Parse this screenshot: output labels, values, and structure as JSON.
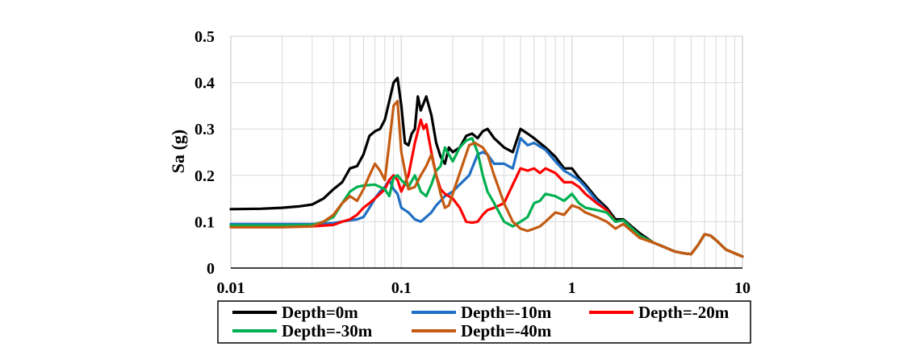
{
  "chart_data": {
    "type": "line",
    "title": "",
    "xlabel": "",
    "ylabel": "Sa (g)",
    "xscale": "log",
    "xlim": [
      0.01,
      10
    ],
    "ylim": [
      0,
      0.5
    ],
    "x_ticks": [
      "0.01",
      "0.1",
      "1",
      "10"
    ],
    "y_ticks": [
      "0",
      "0.1",
      "0.2",
      "0.3",
      "0.4",
      "0.5"
    ],
    "grid": true,
    "legend_position": "bottom",
    "series": [
      {
        "name": "Depth=0m",
        "color": "#000000",
        "points": [
          [
            0.01,
            0.127
          ],
          [
            0.015,
            0.128
          ],
          [
            0.02,
            0.13
          ],
          [
            0.025,
            0.133
          ],
          [
            0.03,
            0.137
          ],
          [
            0.035,
            0.15
          ],
          [
            0.04,
            0.17
          ],
          [
            0.045,
            0.185
          ],
          [
            0.05,
            0.215
          ],
          [
            0.055,
            0.22
          ],
          [
            0.06,
            0.245
          ],
          [
            0.065,
            0.285
          ],
          [
            0.07,
            0.295
          ],
          [
            0.075,
            0.3
          ],
          [
            0.08,
            0.32
          ],
          [
            0.085,
            0.36
          ],
          [
            0.09,
            0.4
          ],
          [
            0.095,
            0.41
          ],
          [
            0.1,
            0.35
          ],
          [
            0.105,
            0.27
          ],
          [
            0.11,
            0.265
          ],
          [
            0.115,
            0.29
          ],
          [
            0.12,
            0.3
          ],
          [
            0.125,
            0.37
          ],
          [
            0.13,
            0.34
          ],
          [
            0.14,
            0.37
          ],
          [
            0.15,
            0.33
          ],
          [
            0.16,
            0.27
          ],
          [
            0.17,
            0.24
          ],
          [
            0.18,
            0.225
          ],
          [
            0.19,
            0.26
          ],
          [
            0.2,
            0.25
          ],
          [
            0.22,
            0.26
          ],
          [
            0.24,
            0.285
          ],
          [
            0.26,
            0.29
          ],
          [
            0.28,
            0.28
          ],
          [
            0.3,
            0.295
          ],
          [
            0.32,
            0.3
          ],
          [
            0.35,
            0.28
          ],
          [
            0.4,
            0.26
          ],
          [
            0.45,
            0.25
          ],
          [
            0.5,
            0.3
          ],
          [
            0.55,
            0.29
          ],
          [
            0.6,
            0.28
          ],
          [
            0.7,
            0.26
          ],
          [
            0.8,
            0.24
          ],
          [
            0.9,
            0.215
          ],
          [
            1.0,
            0.215
          ],
          [
            1.1,
            0.195
          ],
          [
            1.2,
            0.18
          ],
          [
            1.4,
            0.15
          ],
          [
            1.6,
            0.13
          ],
          [
            1.8,
            0.105
          ],
          [
            2.0,
            0.105
          ],
          [
            2.5,
            0.075
          ],
          [
            3.0,
            0.055
          ],
          [
            3.5,
            0.045
          ],
          [
            4.0,
            0.036
          ],
          [
            4.5,
            0.032
          ],
          [
            5.0,
            0.03
          ],
          [
            5.5,
            0.05
          ],
          [
            6.0,
            0.073
          ],
          [
            6.5,
            0.07
          ],
          [
            7.0,
            0.06
          ],
          [
            8.0,
            0.04
          ],
          [
            9.0,
            0.032
          ],
          [
            10.0,
            0.025
          ]
        ]
      },
      {
        "name": "Depth=-10m",
        "color": "#1f6fc4",
        "points": [
          [
            0.01,
            0.095
          ],
          [
            0.02,
            0.095
          ],
          [
            0.03,
            0.095
          ],
          [
            0.04,
            0.097
          ],
          [
            0.05,
            0.103
          ],
          [
            0.055,
            0.105
          ],
          [
            0.06,
            0.11
          ],
          [
            0.065,
            0.13
          ],
          [
            0.07,
            0.15
          ],
          [
            0.075,
            0.165
          ],
          [
            0.08,
            0.175
          ],
          [
            0.085,
            0.19
          ],
          [
            0.09,
            0.17
          ],
          [
            0.095,
            0.16
          ],
          [
            0.1,
            0.13
          ],
          [
            0.11,
            0.12
          ],
          [
            0.12,
            0.105
          ],
          [
            0.13,
            0.1
          ],
          [
            0.14,
            0.11
          ],
          [
            0.15,
            0.12
          ],
          [
            0.16,
            0.135
          ],
          [
            0.18,
            0.155
          ],
          [
            0.2,
            0.165
          ],
          [
            0.22,
            0.18
          ],
          [
            0.25,
            0.2
          ],
          [
            0.28,
            0.245
          ],
          [
            0.3,
            0.25
          ],
          [
            0.32,
            0.245
          ],
          [
            0.35,
            0.225
          ],
          [
            0.4,
            0.225
          ],
          [
            0.45,
            0.215
          ],
          [
            0.5,
            0.28
          ],
          [
            0.55,
            0.265
          ],
          [
            0.6,
            0.27
          ],
          [
            0.7,
            0.255
          ],
          [
            0.8,
            0.23
          ],
          [
            0.9,
            0.21
          ],
          [
            1.0,
            0.2
          ],
          [
            1.1,
            0.19
          ],
          [
            1.2,
            0.175
          ],
          [
            1.4,
            0.145
          ],
          [
            1.6,
            0.125
          ],
          [
            1.8,
            0.1
          ],
          [
            2.0,
            0.103
          ],
          [
            2.5,
            0.07
          ],
          [
            3.0,
            0.055
          ],
          [
            3.5,
            0.045
          ],
          [
            4.0,
            0.036
          ],
          [
            4.5,
            0.032
          ],
          [
            5.0,
            0.03
          ],
          [
            5.5,
            0.05
          ],
          [
            6.0,
            0.073
          ],
          [
            6.5,
            0.07
          ],
          [
            7.0,
            0.06
          ],
          [
            8.0,
            0.04
          ],
          [
            9.0,
            0.032
          ],
          [
            10.0,
            0.025
          ]
        ]
      },
      {
        "name": "Depth=-20m",
        "color": "#ff0000",
        "points": [
          [
            0.01,
            0.09
          ],
          [
            0.02,
            0.09
          ],
          [
            0.03,
            0.09
          ],
          [
            0.04,
            0.093
          ],
          [
            0.045,
            0.1
          ],
          [
            0.05,
            0.105
          ],
          [
            0.055,
            0.115
          ],
          [
            0.06,
            0.13
          ],
          [
            0.065,
            0.14
          ],
          [
            0.07,
            0.15
          ],
          [
            0.075,
            0.16
          ],
          [
            0.08,
            0.17
          ],
          [
            0.085,
            0.19
          ],
          [
            0.09,
            0.2
          ],
          [
            0.095,
            0.19
          ],
          [
            0.1,
            0.165
          ],
          [
            0.11,
            0.2
          ],
          [
            0.12,
            0.27
          ],
          [
            0.13,
            0.32
          ],
          [
            0.135,
            0.3
          ],
          [
            0.14,
            0.31
          ],
          [
            0.15,
            0.25
          ],
          [
            0.16,
            0.2
          ],
          [
            0.17,
            0.17
          ],
          [
            0.18,
            0.16
          ],
          [
            0.2,
            0.15
          ],
          [
            0.22,
            0.13
          ],
          [
            0.24,
            0.1
          ],
          [
            0.26,
            0.098
          ],
          [
            0.28,
            0.1
          ],
          [
            0.3,
            0.115
          ],
          [
            0.32,
            0.125
          ],
          [
            0.35,
            0.13
          ],
          [
            0.4,
            0.14
          ],
          [
            0.45,
            0.18
          ],
          [
            0.5,
            0.215
          ],
          [
            0.55,
            0.21
          ],
          [
            0.6,
            0.215
          ],
          [
            0.65,
            0.205
          ],
          [
            0.7,
            0.215
          ],
          [
            0.8,
            0.205
          ],
          [
            0.9,
            0.185
          ],
          [
            1.0,
            0.185
          ],
          [
            1.1,
            0.175
          ],
          [
            1.2,
            0.16
          ],
          [
            1.4,
            0.14
          ],
          [
            1.6,
            0.125
          ],
          [
            1.8,
            0.1
          ],
          [
            2.0,
            0.103
          ],
          [
            2.5,
            0.07
          ],
          [
            3.0,
            0.055
          ],
          [
            3.5,
            0.045
          ],
          [
            4.0,
            0.036
          ],
          [
            4.5,
            0.032
          ],
          [
            5.0,
            0.03
          ],
          [
            5.5,
            0.05
          ],
          [
            6.0,
            0.073
          ],
          [
            6.5,
            0.07
          ],
          [
            7.0,
            0.06
          ],
          [
            8.0,
            0.04
          ],
          [
            9.0,
            0.032
          ],
          [
            10.0,
            0.025
          ]
        ]
      },
      {
        "name": "Depth=-30m",
        "color": "#00b050",
        "points": [
          [
            0.01,
            0.092
          ],
          [
            0.02,
            0.092
          ],
          [
            0.03,
            0.093
          ],
          [
            0.035,
            0.1
          ],
          [
            0.04,
            0.11
          ],
          [
            0.045,
            0.14
          ],
          [
            0.05,
            0.165
          ],
          [
            0.055,
            0.175
          ],
          [
            0.06,
            0.178
          ],
          [
            0.07,
            0.18
          ],
          [
            0.08,
            0.17
          ],
          [
            0.085,
            0.155
          ],
          [
            0.09,
            0.195
          ],
          [
            0.095,
            0.2
          ],
          [
            0.1,
            0.19
          ],
          [
            0.11,
            0.175
          ],
          [
            0.12,
            0.2
          ],
          [
            0.13,
            0.165
          ],
          [
            0.14,
            0.155
          ],
          [
            0.15,
            0.18
          ],
          [
            0.16,
            0.21
          ],
          [
            0.17,
            0.22
          ],
          [
            0.18,
            0.26
          ],
          [
            0.19,
            0.245
          ],
          [
            0.2,
            0.23
          ],
          [
            0.22,
            0.26
          ],
          [
            0.24,
            0.275
          ],
          [
            0.26,
            0.28
          ],
          [
            0.28,
            0.25
          ],
          [
            0.3,
            0.2
          ],
          [
            0.32,
            0.165
          ],
          [
            0.35,
            0.14
          ],
          [
            0.4,
            0.1
          ],
          [
            0.45,
            0.09
          ],
          [
            0.5,
            0.1
          ],
          [
            0.55,
            0.11
          ],
          [
            0.6,
            0.14
          ],
          [
            0.65,
            0.145
          ],
          [
            0.7,
            0.16
          ],
          [
            0.8,
            0.155
          ],
          [
            0.9,
            0.145
          ],
          [
            1.0,
            0.16
          ],
          [
            1.1,
            0.14
          ],
          [
            1.2,
            0.13
          ],
          [
            1.4,
            0.125
          ],
          [
            1.6,
            0.12
          ],
          [
            1.8,
            0.1
          ],
          [
            2.0,
            0.103
          ],
          [
            2.5,
            0.07
          ],
          [
            3.0,
            0.055
          ],
          [
            3.5,
            0.045
          ],
          [
            4.0,
            0.036
          ],
          [
            4.5,
            0.032
          ],
          [
            5.0,
            0.03
          ],
          [
            5.5,
            0.05
          ],
          [
            6.0,
            0.073
          ],
          [
            6.5,
            0.07
          ],
          [
            7.0,
            0.06
          ],
          [
            8.0,
            0.04
          ],
          [
            9.0,
            0.032
          ],
          [
            10.0,
            0.025
          ]
        ]
      },
      {
        "name": "Depth=-40m",
        "color": "#c55a11",
        "points": [
          [
            0.01,
            0.088
          ],
          [
            0.02,
            0.088
          ],
          [
            0.03,
            0.09
          ],
          [
            0.035,
            0.1
          ],
          [
            0.04,
            0.115
          ],
          [
            0.045,
            0.14
          ],
          [
            0.05,
            0.155
          ],
          [
            0.055,
            0.145
          ],
          [
            0.06,
            0.17
          ],
          [
            0.065,
            0.2
          ],
          [
            0.07,
            0.225
          ],
          [
            0.075,
            0.21
          ],
          [
            0.08,
            0.19
          ],
          [
            0.085,
            0.27
          ],
          [
            0.09,
            0.35
          ],
          [
            0.095,
            0.36
          ],
          [
            0.1,
            0.25
          ],
          [
            0.11,
            0.17
          ],
          [
            0.12,
            0.175
          ],
          [
            0.13,
            0.2
          ],
          [
            0.14,
            0.22
          ],
          [
            0.15,
            0.245
          ],
          [
            0.16,
            0.2
          ],
          [
            0.17,
            0.16
          ],
          [
            0.18,
            0.13
          ],
          [
            0.19,
            0.135
          ],
          [
            0.2,
            0.16
          ],
          [
            0.22,
            0.205
          ],
          [
            0.25,
            0.265
          ],
          [
            0.27,
            0.27
          ],
          [
            0.3,
            0.26
          ],
          [
            0.32,
            0.245
          ],
          [
            0.35,
            0.2
          ],
          [
            0.4,
            0.14
          ],
          [
            0.45,
            0.1
          ],
          [
            0.5,
            0.085
          ],
          [
            0.55,
            0.08
          ],
          [
            0.6,
            0.085
          ],
          [
            0.65,
            0.09
          ],
          [
            0.7,
            0.1
          ],
          [
            0.8,
            0.12
          ],
          [
            0.9,
            0.115
          ],
          [
            1.0,
            0.135
          ],
          [
            1.1,
            0.13
          ],
          [
            1.2,
            0.12
          ],
          [
            1.4,
            0.11
          ],
          [
            1.6,
            0.1
          ],
          [
            1.8,
            0.085
          ],
          [
            2.0,
            0.095
          ],
          [
            2.5,
            0.065
          ],
          [
            3.0,
            0.055
          ],
          [
            3.5,
            0.045
          ],
          [
            4.0,
            0.036
          ],
          [
            4.5,
            0.032
          ],
          [
            5.0,
            0.03
          ],
          [
            5.5,
            0.05
          ],
          [
            6.0,
            0.073
          ],
          [
            6.5,
            0.07
          ],
          [
            7.0,
            0.06
          ],
          [
            8.0,
            0.04
          ],
          [
            9.0,
            0.032
          ],
          [
            10.0,
            0.025
          ]
        ]
      }
    ]
  }
}
